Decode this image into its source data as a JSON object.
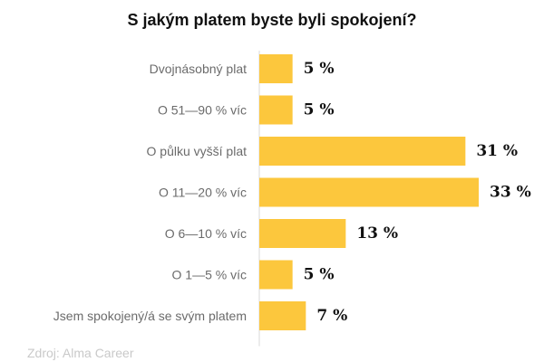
{
  "chart_data": {
    "type": "bar",
    "orientation": "horizontal",
    "title": "S jakým platem byste byli spokojení?",
    "categories": [
      "Dvojnásobný plat",
      "O 51—90 % víc",
      "O půlku vyšší plat",
      "O 11—20 % víc",
      "O 6—10 % víc",
      "O 1—5 % víc",
      "Jsem spokojený/á se svým platem"
    ],
    "values": [
      5,
      5,
      31,
      33,
      13,
      5,
      7
    ],
    "value_labels": [
      "5 %",
      "5 %",
      "31 %",
      "33 %",
      "13 %",
      "5 %",
      "7 %"
    ],
    "xlim": [
      0,
      33
    ],
    "grid": false,
    "bar_color": "#fcc73d",
    "axis_color": "#d9d9d9"
  },
  "source": "Zdroj: Alma Career"
}
